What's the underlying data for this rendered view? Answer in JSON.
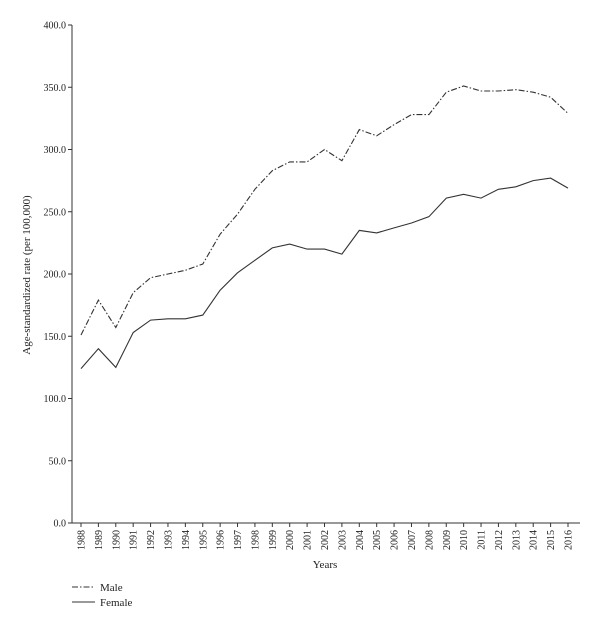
{
  "chart_data": {
    "type": "line",
    "title": "",
    "xlabel": "Years",
    "ylabel": "Age-standardized rate (per 100,000)",
    "ylim": [
      0,
      400
    ],
    "y_ticks": [
      "0.0",
      "50.0",
      "100.0",
      "150.0",
      "200.0",
      "250.0",
      "300.0",
      "350.0",
      "400.0"
    ],
    "categories": [
      "1988",
      "1989",
      "1990",
      "1991",
      "1992",
      "1993",
      "1994",
      "1995",
      "1996",
      "1997",
      "1998",
      "1999",
      "2000",
      "2001",
      "2002",
      "2003",
      "2004",
      "2005",
      "2006",
      "2007",
      "2008",
      "2009",
      "2010",
      "2011",
      "2012",
      "2013",
      "2014",
      "2015",
      "2016"
    ],
    "series": [
      {
        "name": "Male",
        "style": "dash-dot",
        "color": "#333333",
        "values": [
          151,
          179,
          157,
          185,
          197,
          200,
          203,
          208,
          232,
          248,
          268,
          283,
          290,
          290,
          300,
          291,
          316,
          311,
          320,
          328,
          328,
          346,
          351,
          347,
          347,
          348,
          346,
          342,
          329
        ]
      },
      {
        "name": "Female",
        "style": "solid",
        "color": "#333333",
        "values": [
          124,
          140,
          125,
          153,
          163,
          164,
          164,
          167,
          187,
          201,
          211,
          221,
          224,
          220,
          220,
          216,
          235,
          233,
          237,
          241,
          246,
          261,
          264,
          261,
          268,
          270,
          275,
          277,
          269
        ]
      }
    ],
    "grid": false,
    "legend_position": "bottom-left"
  }
}
